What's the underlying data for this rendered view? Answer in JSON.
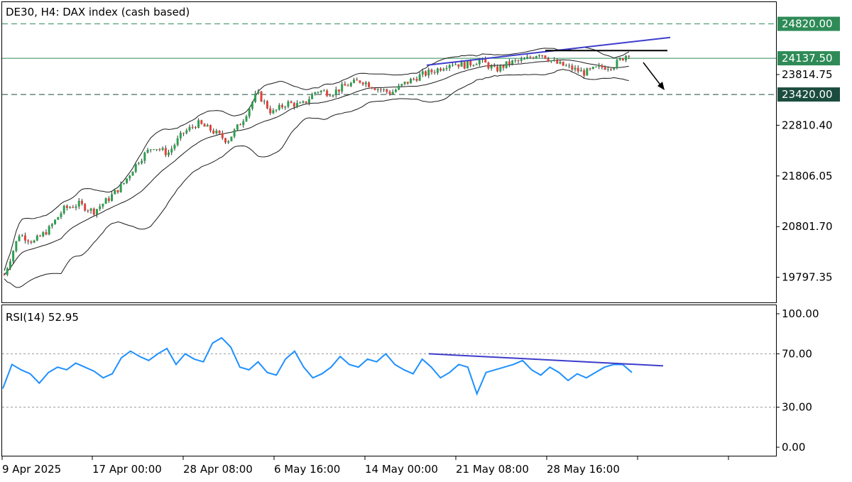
{
  "chart_data": [
    {
      "type": "candlestick",
      "title": "DE30, H4:  DAX index (cash based)",
      "y_ticks": [
        19797.35,
        20801.7,
        21806.05,
        22810.4,
        23814.75
      ],
      "ylim": [
        19300,
        25250
      ],
      "x_ticks": [
        "9 Apr 2025",
        "17 Apr 00:00",
        "28 Apr 08:00",
        "6 May 16:00",
        "14 May 00:00",
        "21 May 08:00",
        "28 May 16:00"
      ],
      "levels": [
        {
          "value": 24820.0,
          "label": "24820.00",
          "style": "dashed",
          "color": "#2e8b57"
        },
        {
          "value": 24137.5,
          "label": "24137.50",
          "style": "solid",
          "color": "#2e8b57"
        },
        {
          "value": 23420.0,
          "label": "23420.00",
          "style": "dashed",
          "color": "#1b4d3e"
        }
      ],
      "close_series": [
        19850,
        20650,
        20500,
        20750,
        21150,
        21250,
        21100,
        21350,
        21650,
        22100,
        22400,
        22250,
        22650,
        22850,
        22700,
        22500,
        22900,
        23450,
        23050,
        23250,
        23200,
        23500,
        23450,
        23600,
        23700,
        23550,
        23450,
        23650,
        23800,
        23900,
        24050,
        24000,
        24100,
        23900,
        24050,
        24100,
        24250,
        24050,
        23950,
        23850,
        23950,
        24000,
        24250
      ],
      "series": [
        {
          "name": "Bollinger Bands",
          "bands": "upper/middle/lower",
          "color": "#1a1a1a"
        }
      ],
      "trendlines": [
        {
          "from": [
            "14 May 00:00",
            24000
          ],
          "to": [
            "end",
            24550
          ],
          "color": "#3d3dcc"
        },
        {
          "from": [
            "28 May 16:00",
            24290
          ],
          "to": [
            "end",
            24290
          ],
          "color": "#000000"
        }
      ],
      "arrow": {
        "direction": "down-right",
        "color": "#000000"
      }
    },
    {
      "type": "line",
      "title": "RSI(14) 52.95",
      "y_ticks": [
        100.0,
        70.0,
        30.0,
        0.0
      ],
      "ylim": [
        0,
        100
      ],
      "reference_levels": [
        70,
        30
      ],
      "series": [
        {
          "values": [
            44,
            62,
            58,
            55,
            48,
            56,
            60,
            58,
            63,
            60,
            57,
            52,
            55,
            67,
            72,
            68,
            65,
            70,
            74,
            62,
            70,
            66,
            64,
            78,
            82,
            75,
            60,
            58,
            64,
            56,
            54,
            66,
            72,
            60,
            52,
            55,
            60,
            68,
            62,
            60,
            66,
            64,
            70,
            62,
            58,
            55,
            66,
            60,
            52,
            56,
            62,
            60,
            40,
            56,
            58,
            60,
            62,
            65,
            58,
            54,
            60,
            56,
            50,
            55,
            52,
            56,
            60,
            62,
            62,
            56
          ],
          "color": "#1e90ff"
        }
      ],
      "trendlines": [
        {
          "from": [
            "14 May 00:00",
            70
          ],
          "to": [
            "end",
            61
          ],
          "color": "#3d3dcc"
        }
      ]
    }
  ],
  "rsi_ticks": [
    "100.00",
    "70.00",
    "30.00",
    "0.00"
  ]
}
